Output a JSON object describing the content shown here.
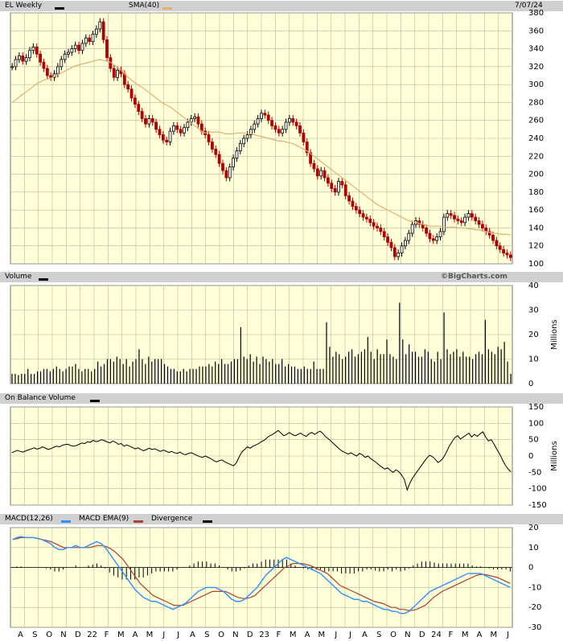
{
  "header": {
    "symbol_label": "EL Weekly",
    "sma_label": "SMA(40)",
    "date": "7/07/24",
    "symbol_swatch": "#000000",
    "sma_swatch": "#e0b070"
  },
  "volume_header": {
    "label": "Volume",
    "watermark": "©BigCharts.com"
  },
  "obv_header": {
    "label": "On Balance Volume"
  },
  "macd_header": {
    "macd_label": "MACD(12,26)",
    "ema_label": "MACD EMA(9)",
    "div_label": "Divergence"
  },
  "colors": {
    "plot_bg": "#ffffd8",
    "grid": "#b8b8a0",
    "up": "#000000",
    "down": "#b00000",
    "sma": "#e0b070",
    "macd": "#3090ff",
    "ema": "#b04030"
  },
  "chart_data": [
    {
      "type": "candlestick",
      "title": "EL Weekly",
      "ylim": [
        100,
        380
      ],
      "yticks": [
        100,
        120,
        140,
        160,
        180,
        200,
        220,
        240,
        260,
        280,
        300,
        320,
        340,
        360,
        380
      ],
      "close_series_approx": [
        320,
        328,
        332,
        326,
        330,
        338,
        342,
        334,
        325,
        318,
        310,
        308,
        312,
        320,
        328,
        334,
        336,
        340,
        344,
        338,
        346,
        352,
        348,
        356,
        362,
        370,
        350,
        330,
        318,
        308,
        316,
        312,
        300,
        295,
        285,
        278,
        270,
        262,
        256,
        262,
        258,
        250,
        244,
        238,
        236,
        248,
        254,
        250,
        246,
        252,
        258,
        262,
        264,
        256,
        248,
        244,
        236,
        228,
        222,
        212,
        204,
        196,
        208,
        218,
        226,
        234,
        240,
        244,
        250,
        256,
        262,
        268,
        266,
        260,
        254,
        250,
        246,
        250,
        258,
        262,
        258,
        254,
        246,
        236,
        224,
        212,
        206,
        198,
        204,
        196,
        190,
        184,
        180,
        192,
        188,
        176,
        170,
        164,
        160,
        156,
        152,
        150,
        146,
        142,
        140,
        136,
        130,
        124,
        118,
        108,
        112,
        120,
        126,
        134,
        144,
        148,
        144,
        140,
        134,
        128,
        126,
        130,
        136,
        152,
        156,
        154,
        150,
        148,
        146,
        152,
        156,
        152,
        148,
        144,
        140,
        136,
        132,
        126,
        120,
        116,
        112,
        110,
        107
      ],
      "sma_series_approx": [
        280,
        283,
        286,
        289,
        292,
        295,
        298,
        301,
        303,
        305,
        306,
        307,
        309,
        311,
        313,
        315,
        317,
        319,
        321,
        322,
        323,
        324,
        325,
        326,
        327,
        328,
        327,
        326,
        325,
        322,
        319,
        316,
        312,
        308,
        305,
        302,
        299,
        297,
        294,
        291,
        288,
        285,
        282,
        279,
        277,
        275,
        272,
        269,
        266,
        263,
        260,
        257,
        254,
        251,
        248,
        246,
        247,
        247,
        247,
        247,
        246,
        245,
        245,
        245,
        246,
        246,
        246,
        246,
        245,
        244,
        243,
        242,
        241,
        240,
        239,
        238,
        237,
        237,
        236,
        235,
        234,
        232,
        230,
        228,
        226,
        223,
        220,
        217,
        214,
        211,
        208,
        205,
        202,
        199,
        196,
        193,
        190,
        187,
        184,
        181,
        178,
        175,
        172,
        169,
        166,
        164,
        162,
        160,
        158,
        156,
        154,
        152,
        150,
        148,
        147,
        146,
        145,
        144,
        143,
        142,
        142,
        142,
        142,
        141,
        141,
        141,
        141,
        140,
        140,
        140,
        139,
        139,
        138,
        138,
        137,
        136,
        135,
        134,
        134,
        133,
        133,
        133,
        132
      ],
      "x_labels": [
        "A",
        "S",
        "O",
        "N",
        "D",
        "22",
        "F",
        "M",
        "A",
        "M",
        "J",
        "J",
        "A",
        "S",
        "O",
        "N",
        "D",
        "23",
        "F",
        "M",
        "A",
        "M",
        "J",
        "J",
        "A",
        "S",
        "O",
        "N",
        "D",
        "24",
        "F",
        "M",
        "A",
        "M",
        "J"
      ]
    },
    {
      "type": "bar",
      "title": "Volume",
      "ylabel": "Millions",
      "ylim": [
        0,
        40
      ],
      "yticks": [
        0,
        10,
        20,
        30,
        40
      ],
      "values": [
        4,
        4,
        3.5,
        4,
        4,
        6,
        4,
        4,
        5,
        5,
        6,
        6,
        5,
        6,
        7,
        6,
        5,
        6,
        7,
        7,
        8,
        6,
        5,
        6,
        6,
        5,
        6,
        9,
        7,
        8,
        10,
        10,
        9,
        11,
        10,
        8,
        10,
        7,
        9,
        10,
        14,
        10,
        8,
        11,
        9,
        10,
        10,
        10,
        8,
        7,
        6,
        6,
        5,
        5,
        6,
        5,
        6,
        6,
        6,
        7,
        7,
        7,
        8,
        7,
        9,
        8,
        10,
        8,
        8,
        9,
        10,
        10,
        23,
        11,
        10,
        12,
        9,
        11,
        8,
        11,
        10,
        9,
        10,
        8,
        8,
        10,
        7,
        8,
        7,
        7,
        6,
        6,
        7,
        6,
        6,
        9,
        6,
        6,
        6,
        25,
        15,
        11,
        13,
        12,
        10,
        11,
        13,
        14,
        11,
        12,
        13,
        14,
        19,
        13,
        10,
        14,
        12,
        12,
        18,
        12,
        11,
        10,
        33,
        18,
        12,
        16,
        13,
        13,
        11,
        11,
        14,
        13,
        10,
        9,
        13,
        10,
        29,
        14,
        12,
        13,
        14,
        11,
        13,
        11,
        11,
        10,
        12,
        13,
        12,
        26,
        14,
        13,
        12,
        15,
        14,
        17,
        9,
        4
      ]
    },
    {
      "type": "line",
      "title": "On Balance Volume",
      "ylabel": "Millions",
      "ylim": [
        -150,
        150
      ],
      "yticks": [
        -150,
        -100,
        -50,
        0,
        50,
        100,
        150
      ],
      "values": [
        10,
        14,
        17,
        14,
        12,
        16,
        19,
        22,
        25,
        21,
        24,
        28,
        24,
        20,
        23,
        27,
        30,
        28,
        33,
        35,
        36,
        32,
        30,
        32,
        36,
        40,
        38,
        44,
        42,
        48,
        44,
        46,
        50,
        47,
        43,
        40,
        46,
        42,
        36,
        38,
        30,
        34,
        30,
        26,
        22,
        25,
        20,
        16,
        20,
        24,
        20,
        22,
        18,
        14,
        18,
        15,
        11,
        14,
        10,
        8,
        12,
        6,
        4,
        8,
        10,
        6,
        2,
        -2,
        -4,
        0,
        -4,
        -8,
        -14,
        -18,
        -14,
        -12,
        -18,
        -22,
        -26,
        -30,
        -22,
        -4,
        12,
        20,
        28,
        24,
        30,
        34,
        38,
        44,
        48,
        56,
        62,
        66,
        72,
        78,
        70,
        62,
        66,
        72,
        66,
        62,
        66,
        70,
        64,
        60,
        68,
        72,
        66,
        72,
        76,
        68,
        58,
        52,
        44,
        36,
        28,
        20,
        14,
        10,
        6,
        10,
        4,
        0,
        8,
        4,
        -4,
        0,
        -8,
        -14,
        -20,
        -28,
        -34,
        -40,
        -36,
        -44,
        -50,
        -42,
        -48,
        -58,
        -72,
        -104,
        -82,
        -66,
        -54,
        -42,
        -30,
        -18,
        -6,
        2,
        -2,
        -10,
        -20,
        -14,
        -4,
        12,
        30,
        44,
        56,
        62,
        52,
        58,
        64,
        70,
        58,
        66,
        60,
        68,
        74,
        58,
        46,
        50,
        36,
        20,
        6,
        -12,
        -28,
        -40,
        -48
      ]
    },
    {
      "type": "line",
      "title": "MACD(12,26)",
      "ylim": [
        -30,
        20
      ],
      "yticks": [
        -30,
        -20,
        -10,
        0,
        10,
        20
      ],
      "series": [
        {
          "name": "MACD(12,26)",
          "values": [
            14,
            15,
            15.5,
            15,
            15,
            15,
            14.5,
            14,
            13,
            12,
            10,
            9,
            9,
            10,
            10,
            11,
            10,
            10,
            11,
            12,
            13,
            12,
            10,
            7,
            4,
            1,
            -2,
            -5,
            -8,
            -11,
            -13,
            -15,
            -16,
            -17,
            -17,
            -18,
            -19,
            -20,
            -21,
            -20,
            -19,
            -18,
            -16,
            -14,
            -12,
            -11,
            -10,
            -10,
            -10,
            -11,
            -12,
            -14,
            -16,
            -17,
            -17,
            -16,
            -14,
            -12,
            -10,
            -7,
            -4,
            -2,
            0,
            2,
            4,
            5,
            4,
            3,
            2,
            1,
            0,
            -1,
            -2,
            -3,
            -5,
            -7,
            -9,
            -11,
            -13,
            -14,
            -15,
            -16,
            -16,
            -17,
            -17,
            -18,
            -19,
            -20,
            -21,
            -21,
            -22,
            -22,
            -23,
            -23,
            -22,
            -20,
            -18,
            -16,
            -14,
            -12,
            -11,
            -10,
            -9,
            -8,
            -7,
            -6,
            -5,
            -4,
            -3,
            -3,
            -3,
            -3,
            -4,
            -5,
            -6,
            -7,
            -8,
            -9,
            -10
          ]
        },
        {
          "name": "MACD EMA(9)",
          "values": [
            14,
            14.5,
            15,
            15,
            15,
            15,
            14.5,
            14,
            13.5,
            13,
            12,
            11,
            10,
            10,
            10,
            10,
            10,
            10,
            10,
            10.5,
            11,
            11,
            10.5,
            9.5,
            8,
            6,
            4,
            1,
            -2,
            -5,
            -8,
            -10,
            -12,
            -14,
            -15,
            -16,
            -17,
            -18,
            -19,
            -19,
            -19,
            -18,
            -17,
            -16,
            -15,
            -14,
            -13,
            -12,
            -12,
            -12,
            -12,
            -13,
            -14,
            -15,
            -15.5,
            -15.5,
            -15,
            -14,
            -12,
            -10,
            -8,
            -6,
            -4,
            -2,
            0,
            1,
            2,
            2,
            2,
            1.5,
            1,
            0,
            -1,
            -2,
            -3,
            -5,
            -7,
            -9,
            -10,
            -11,
            -12,
            -13,
            -14,
            -15,
            -16,
            -17,
            -17.5,
            -18,
            -19,
            -20,
            -20,
            -21,
            -21,
            -21.5,
            -21.5,
            -21,
            -20,
            -19,
            -17,
            -15,
            -13.5,
            -12,
            -11,
            -10,
            -9,
            -8,
            -7,
            -6,
            -5,
            -4,
            -3.5,
            -3.5,
            -4,
            -4.5,
            -5,
            -6,
            -7,
            -8
          ]
        },
        {
          "name": "Divergence",
          "values": [
            0,
            0.5,
            0.5,
            0,
            0,
            0,
            0,
            0,
            -0.5,
            -1,
            -2,
            -2,
            -1,
            0,
            0,
            1,
            0,
            0,
            1,
            1.5,
            2,
            1,
            -0.5,
            -2.5,
            -4,
            -5,
            -6,
            -6,
            -6,
            -6,
            -5,
            -5,
            -4,
            -3,
            -2,
            -2,
            -2,
            -2,
            -2,
            -1,
            0,
            0,
            1,
            2,
            3,
            3,
            3,
            2,
            2,
            1,
            0,
            -1,
            -2,
            -2,
            -1.5,
            -0.5,
            1,
            2,
            2,
            3,
            4,
            4,
            4,
            4,
            4,
            4,
            2,
            1,
            0,
            -0.5,
            -1,
            -1,
            -1,
            -1,
            -2,
            -2,
            -2,
            -2,
            -3,
            -3,
            -3,
            -3,
            -2,
            -2,
            -1,
            -1,
            -1.5,
            -2,
            -2,
            -1,
            -2,
            -1,
            -2,
            -1.5,
            -0.5,
            1,
            2,
            3,
            3,
            3,
            2.5,
            2,
            2,
            2,
            2,
            2,
            2,
            2,
            2,
            1,
            0.5,
            0.5,
            0,
            -0.5,
            -1,
            -1,
            -1,
            -1,
            -2
          ]
        }
      ]
    }
  ]
}
